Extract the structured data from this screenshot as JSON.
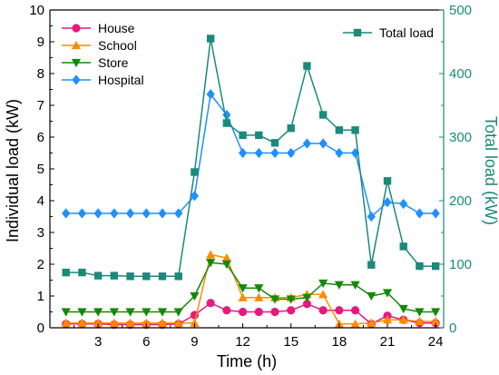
{
  "chart_data": {
    "type": "line",
    "xlabel": "Time (h)",
    "ylabel": "Individual load (kW)",
    "y2label": "Total load (kW)",
    "xlim": [
      0,
      24.5
    ],
    "ylim": [
      0,
      10
    ],
    "y2lim": [
      0,
      500
    ],
    "xticks": [
      3,
      6,
      9,
      12,
      15,
      18,
      21,
      24
    ],
    "yticks": [
      0,
      1,
      2,
      3,
      4,
      5,
      6,
      7,
      8,
      9,
      10
    ],
    "y2ticks": [
      0,
      100,
      200,
      300,
      400,
      500
    ],
    "x": [
      1,
      2,
      3,
      4,
      5,
      6,
      7,
      8,
      9,
      10,
      11,
      12,
      13,
      14,
      15,
      16,
      17,
      18,
      19,
      20,
      21,
      22,
      23,
      24
    ],
    "series": [
      {
        "name": "House",
        "axis": "left",
        "color": "#e6197d",
        "marker": "circle",
        "values": [
          0.12,
          0.12,
          0.12,
          0.1,
          0.1,
          0.1,
          0.1,
          0.12,
          0.4,
          0.78,
          0.55,
          0.5,
          0.5,
          0.5,
          0.55,
          0.75,
          0.55,
          0.55,
          0.55,
          0.12,
          0.38,
          0.25,
          0.15,
          0.15
        ]
      },
      {
        "name": "School",
        "axis": "left",
        "color": "#ff8c00",
        "marker": "triangle-up",
        "values": [
          0.15,
          0.15,
          0.15,
          0.15,
          0.15,
          0.15,
          0.15,
          0.15,
          0.15,
          2.3,
          2.2,
          0.95,
          0.95,
          0.95,
          0.95,
          1.05,
          1.05,
          0.12,
          0.12,
          0.15,
          0.25,
          0.25,
          0.2,
          0.2
        ]
      },
      {
        "name": "Store",
        "axis": "left",
        "color": "#138a07",
        "marker": "triangle-down",
        "values": [
          0.5,
          0.5,
          0.5,
          0.5,
          0.5,
          0.5,
          0.5,
          0.5,
          1.0,
          2.05,
          2.0,
          1.25,
          1.25,
          0.9,
          0.9,
          0.95,
          1.4,
          1.35,
          1.35,
          1.0,
          1.1,
          0.6,
          0.5,
          0.5
        ]
      },
      {
        "name": "Hospital",
        "axis": "left",
        "color": "#1e90ff",
        "marker": "diamond",
        "values": [
          3.6,
          3.6,
          3.6,
          3.6,
          3.6,
          3.6,
          3.6,
          3.6,
          4.15,
          7.35,
          6.7,
          5.5,
          5.5,
          5.5,
          5.5,
          5.8,
          5.8,
          5.5,
          5.5,
          3.5,
          3.95,
          3.9,
          3.6,
          3.6
        ]
      },
      {
        "name": "Total load",
        "axis": "right",
        "color": "#1a8a7a",
        "marker": "square",
        "values": [
          87,
          87,
          82,
          82,
          81,
          81,
          81,
          81,
          245,
          455,
          322,
          303,
          303,
          291,
          314,
          412,
          335,
          311,
          311,
          99,
          231,
          128,
          97,
          97
        ]
      }
    ],
    "legend": [
      {
        "position": "top-left",
        "entries": [
          "House",
          "School",
          "Store",
          "Hospital"
        ]
      },
      {
        "position": "top-right",
        "entries": [
          "Total load"
        ]
      }
    ],
    "right_axis_color": "#1a8a7a"
  }
}
